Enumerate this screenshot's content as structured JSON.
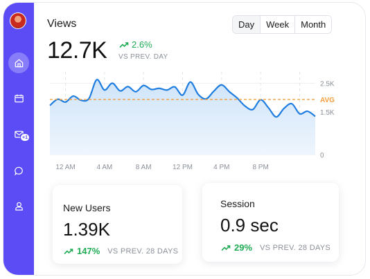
{
  "sidebar": {
    "items": [
      {
        "name": "home",
        "icon": "home-icon",
        "active": true
      },
      {
        "name": "calendar",
        "icon": "calendar-icon"
      },
      {
        "name": "mail",
        "icon": "mail-icon",
        "badge": "+1"
      },
      {
        "name": "messages",
        "icon": "chat-icon"
      },
      {
        "name": "profile",
        "icon": "user-icon"
      }
    ]
  },
  "views": {
    "title": "Views",
    "value": "12.7K",
    "change": "2.6%",
    "change_label": "VS PREV. DAY"
  },
  "range": {
    "options": [
      "Day",
      "Week",
      "Month"
    ],
    "selected": "Day"
  },
  "chart_data": {
    "type": "area",
    "x_ticks": [
      "12 AM",
      "4 AM",
      "8 AM",
      "12 PM",
      "4 PM",
      "8 PM"
    ],
    "y_ticks": [
      "0",
      "1.5K",
      "2.5K"
    ],
    "ylim": [
      0,
      2800
    ],
    "avg_label": "AVG",
    "avg_value": 1930,
    "series": [
      {
        "values": [
          1720,
          1940,
          1840,
          2050,
          1900,
          1960,
          2620,
          2260,
          2500,
          2230,
          2380,
          2200,
          2420,
          2280,
          2320,
          2260,
          2370,
          2080,
          2540,
          2110,
          1950,
          2220,
          2440,
          2200,
          1980,
          1700,
          1580,
          1920,
          1640,
          1320,
          1620,
          1780,
          1430,
          1520,
          1340
        ]
      }
    ],
    "colors": {
      "line": "#1f7de0",
      "fill_top": "#cfe4fa",
      "fill_bottom": "#eef5fd",
      "avg": "#f59e3d"
    }
  },
  "cards": [
    {
      "title": "New Users",
      "value": "1.39K",
      "change": "147%",
      "change_label": "VS PREV. 28 DAYS"
    },
    {
      "title": "Session",
      "value": "0.9 sec",
      "change": "29%",
      "change_label": "VS PREV. 28 DAYS"
    }
  ]
}
